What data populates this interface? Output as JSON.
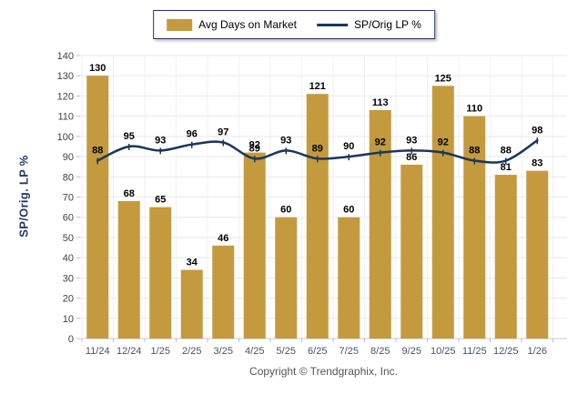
{
  "legend": {
    "items": [
      {
        "label": "Avg Days on Market",
        "type": "bar",
        "color": "#C49A3E"
      },
      {
        "label": "SP/Orig LP %",
        "type": "line",
        "color": "#1B365D"
      }
    ]
  },
  "chart_data": {
    "type": "combo",
    "categories": [
      "11/24",
      "12/24",
      "1/25",
      "2/25",
      "3/25",
      "4/25",
      "5/25",
      "6/25",
      "7/25",
      "8/25",
      "9/25",
      "10/25",
      "11/25",
      "12/25",
      "1/26"
    ],
    "series": [
      {
        "name": "Avg Days on Market",
        "type": "bar",
        "color": "#C49A3E",
        "values": [
          130,
          68,
          65,
          34,
          46,
          92,
          60,
          121,
          60,
          113,
          86,
          125,
          110,
          81,
          83
        ]
      },
      {
        "name": "SP/Orig LP %",
        "type": "line",
        "color": "#1B365D",
        "values": [
          88,
          95,
          93,
          96,
          97,
          89,
          93,
          89,
          90,
          92,
          93,
          92,
          88,
          88,
          98
        ]
      }
    ],
    "title": "",
    "xlabel": "",
    "ylabel": "SP/Orig. LP %",
    "ylim": [
      0,
      140
    ],
    "yticks": [
      0,
      10,
      20,
      30,
      40,
      50,
      60,
      70,
      80,
      90,
      100,
      110,
      120,
      130,
      140
    ],
    "grid": true,
    "data_labels": true,
    "legend_position": "top-center"
  },
  "footer": {
    "copyright": "Copyright © Trendgraphix, Inc."
  },
  "colors": {
    "bar": "#C49A3E",
    "line": "#1B365D",
    "grid_h": "#E9E9E9",
    "grid_v": "#F2F2F2",
    "axis": "#C9C9C9",
    "tick": "#BFBFBF",
    "ytick_label": "#404040",
    "xtick_label": "#44546A",
    "data_label": "#000000",
    "ylabel": "#1F3864",
    "copyright": "#555555"
  }
}
